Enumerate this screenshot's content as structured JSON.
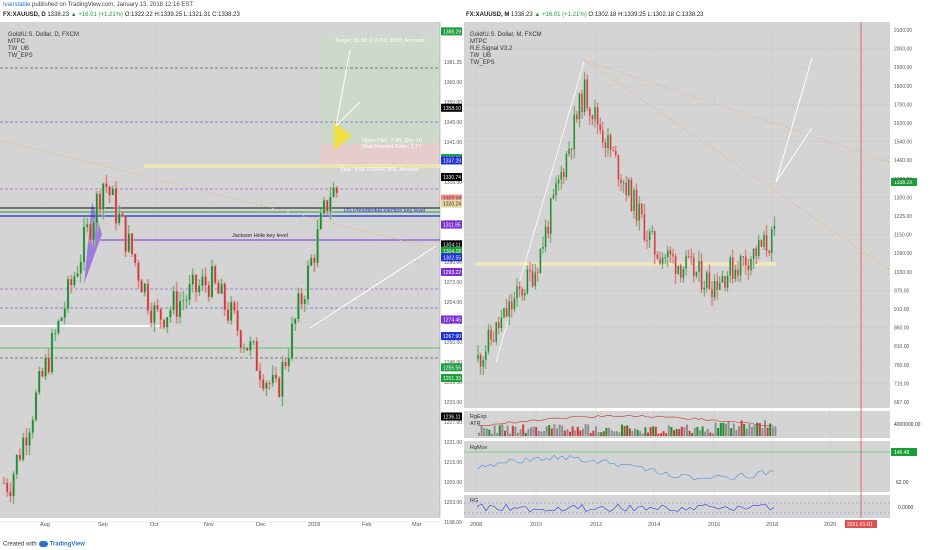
{
  "publish": {
    "author": "Ivanstable",
    "text": "published on TradingView.com, January 13, 2018 12:16 EST"
  },
  "footer": {
    "created": "Created with",
    "brand": "TradingView"
  },
  "left_chart": {
    "header": {
      "symbol": "FX:XAUUSD, D",
      "price": "1338.23",
      "change": "▲ +16.01 (+1.21%)",
      "o": "O:1322.22",
      "h": "H:1339.25",
      "l": "L:1321.31",
      "c": "C:1338.23"
    },
    "legend": [
      "Gold/U.S. Dollar, D, FXCM",
      "MTPC",
      "TW_UB",
      "TW_EPS"
    ],
    "notes": {
      "target": "Target: 35.50 (2.67%) 3550, Amount:",
      "open_pnl": "Open P&L: 7.95, Qty: 10",
      "risk_reward": "Risk/Reward Ratio: 1.77",
      "stop": "Stop: 8.58 (0.64%) 858, Amount:",
      "us_election": "US Presidential election key level",
      "jackson": "Jackson Hole key level"
    },
    "price_labels": [
      {
        "text": "1358.10",
        "price": 1358.1,
        "color": "#000000"
      },
      {
        "text": "1338.23",
        "price": 1338.23,
        "color": "#1b9e3a"
      },
      {
        "text": "1337.29",
        "price": 1337.29,
        "color": "#1f2fd6"
      },
      {
        "text": "1330.74",
        "price": 1330.74,
        "color": "#000000"
      },
      {
        "text": "1322.22",
        "price": 1322.22,
        "color": "#f08a8a"
      },
      {
        "text": "1320.24",
        "price": 1320.24,
        "color": "#e7d6a0"
      },
      {
        "text": "1311.95",
        "price": 1311.95,
        "color": "#7d2fd6"
      },
      {
        "text": "1304.11",
        "price": 1304.11,
        "color": "#000000"
      },
      {
        "text": "1304.18",
        "price": 1301.6,
        "color": "#1b9e3a"
      },
      {
        "text": "1302.55",
        "price": 1299.0,
        "color": "#1f2fd6"
      },
      {
        "text": "1293.22",
        "price": 1293.22,
        "color": "#7d2fd6"
      },
      {
        "text": "1274.45",
        "price": 1274.45,
        "color": "#7d2fd6"
      },
      {
        "text": "1267.90",
        "price": 1267.9,
        "color": "#1f2fd6"
      },
      {
        "text": "1255.55",
        "price": 1255.55,
        "color": "#1b9e3a"
      },
      {
        "text": "1251.33",
        "price": 1251.33,
        "color": "#1b9e3a"
      },
      {
        "text": "1236.11",
        "price": 1236.11,
        "color": "#000000"
      },
      {
        "text": "1388.29",
        "price": 1388.29,
        "color": "#1b9e3a"
      }
    ],
    "y_ticks": [
      "1381.25",
      "1360.00",
      "1350.00",
      "1345.00",
      "1341.00",
      "1320.00",
      "1316.00",
      "1314.00",
      "1309.00",
      "1288.00",
      "1280.00",
      "1272.00",
      "1264.00",
      "1257.00",
      "1250.00",
      "1245.00",
      "1239.00",
      "1233.00",
      "1227.00",
      "1221.00",
      "1215.00",
      "1209.00",
      "1203.00",
      "1198.00"
    ],
    "x_ticks": [
      "Aug",
      "Sep",
      "Oct",
      "Nov",
      "Dec",
      "2018",
      "Feb",
      "Mar"
    ]
  },
  "right_chart": {
    "header": {
      "symbol": "FX:XAUUSD, M",
      "price": "1338.23",
      "change": "▲ +16.01 (+1.21%)",
      "o": "O:1302.18",
      "h": "H:1339.25",
      "l": "L:1302.18",
      "c": "C:1338.23"
    },
    "legend": [
      "Gold/U.S. Dollar, M, FXCM",
      "MTPC",
      "R.E.Signal V3.2",
      "TW_UB",
      "TW_EPS"
    ],
    "price_label": "1338.23",
    "y_ticks": [
      "2100.00",
      "2000.00",
      "1900.00",
      "1800.00",
      "1700.00",
      "1620.00",
      "1540.00",
      "1460.00",
      "1380.00",
      "1300.00",
      "1225.00",
      "1150.00",
      "1090.00",
      "1030.00",
      "970.00",
      "910.00",
      "860.00",
      "810.00",
      "760.00",
      "719.00",
      "687.00"
    ],
    "x_ticks": [
      "2008",
      "2010",
      "2012",
      "2014",
      "2016",
      "2018",
      "2020"
    ],
    "x_end_label": "2021-01-01",
    "ind1": {
      "labels": [
        "RgExp",
        "ATR"
      ],
      "tick": "4000000.00"
    },
    "ind2": {
      "label": "RgMov",
      "value": "146.48",
      "tick": "62.00"
    },
    "ind3": {
      "label": "RG",
      "tick": "0.0000"
    }
  },
  "chart_data": [
    {
      "type": "line",
      "title": "Gold/U.S. Dollar, D, FXCM",
      "xlabel": "",
      "ylabel": "",
      "x": [
        "Aug",
        "Sep",
        "Oct",
        "Nov",
        "Dec",
        "2018"
      ],
      "ylim": [
        1196,
        1392
      ],
      "series": [
        {
          "values": [
            1210,
            1330,
            1275,
            1290,
            1245,
            1325
          ]
        }
      ]
    },
    {
      "type": "line",
      "title": "Gold/U.S. Dollar, M, FXCM",
      "xlabel": "",
      "ylabel": "",
      "x": [
        "2008",
        "2010",
        "2012",
        "2014",
        "2016",
        "2018"
      ],
      "ylim": [
        680,
        2130
      ],
      "series": [
        {
          "values": [
            880,
            1230,
            1900,
            1300,
            1170,
            1338
          ]
        }
      ]
    }
  ]
}
